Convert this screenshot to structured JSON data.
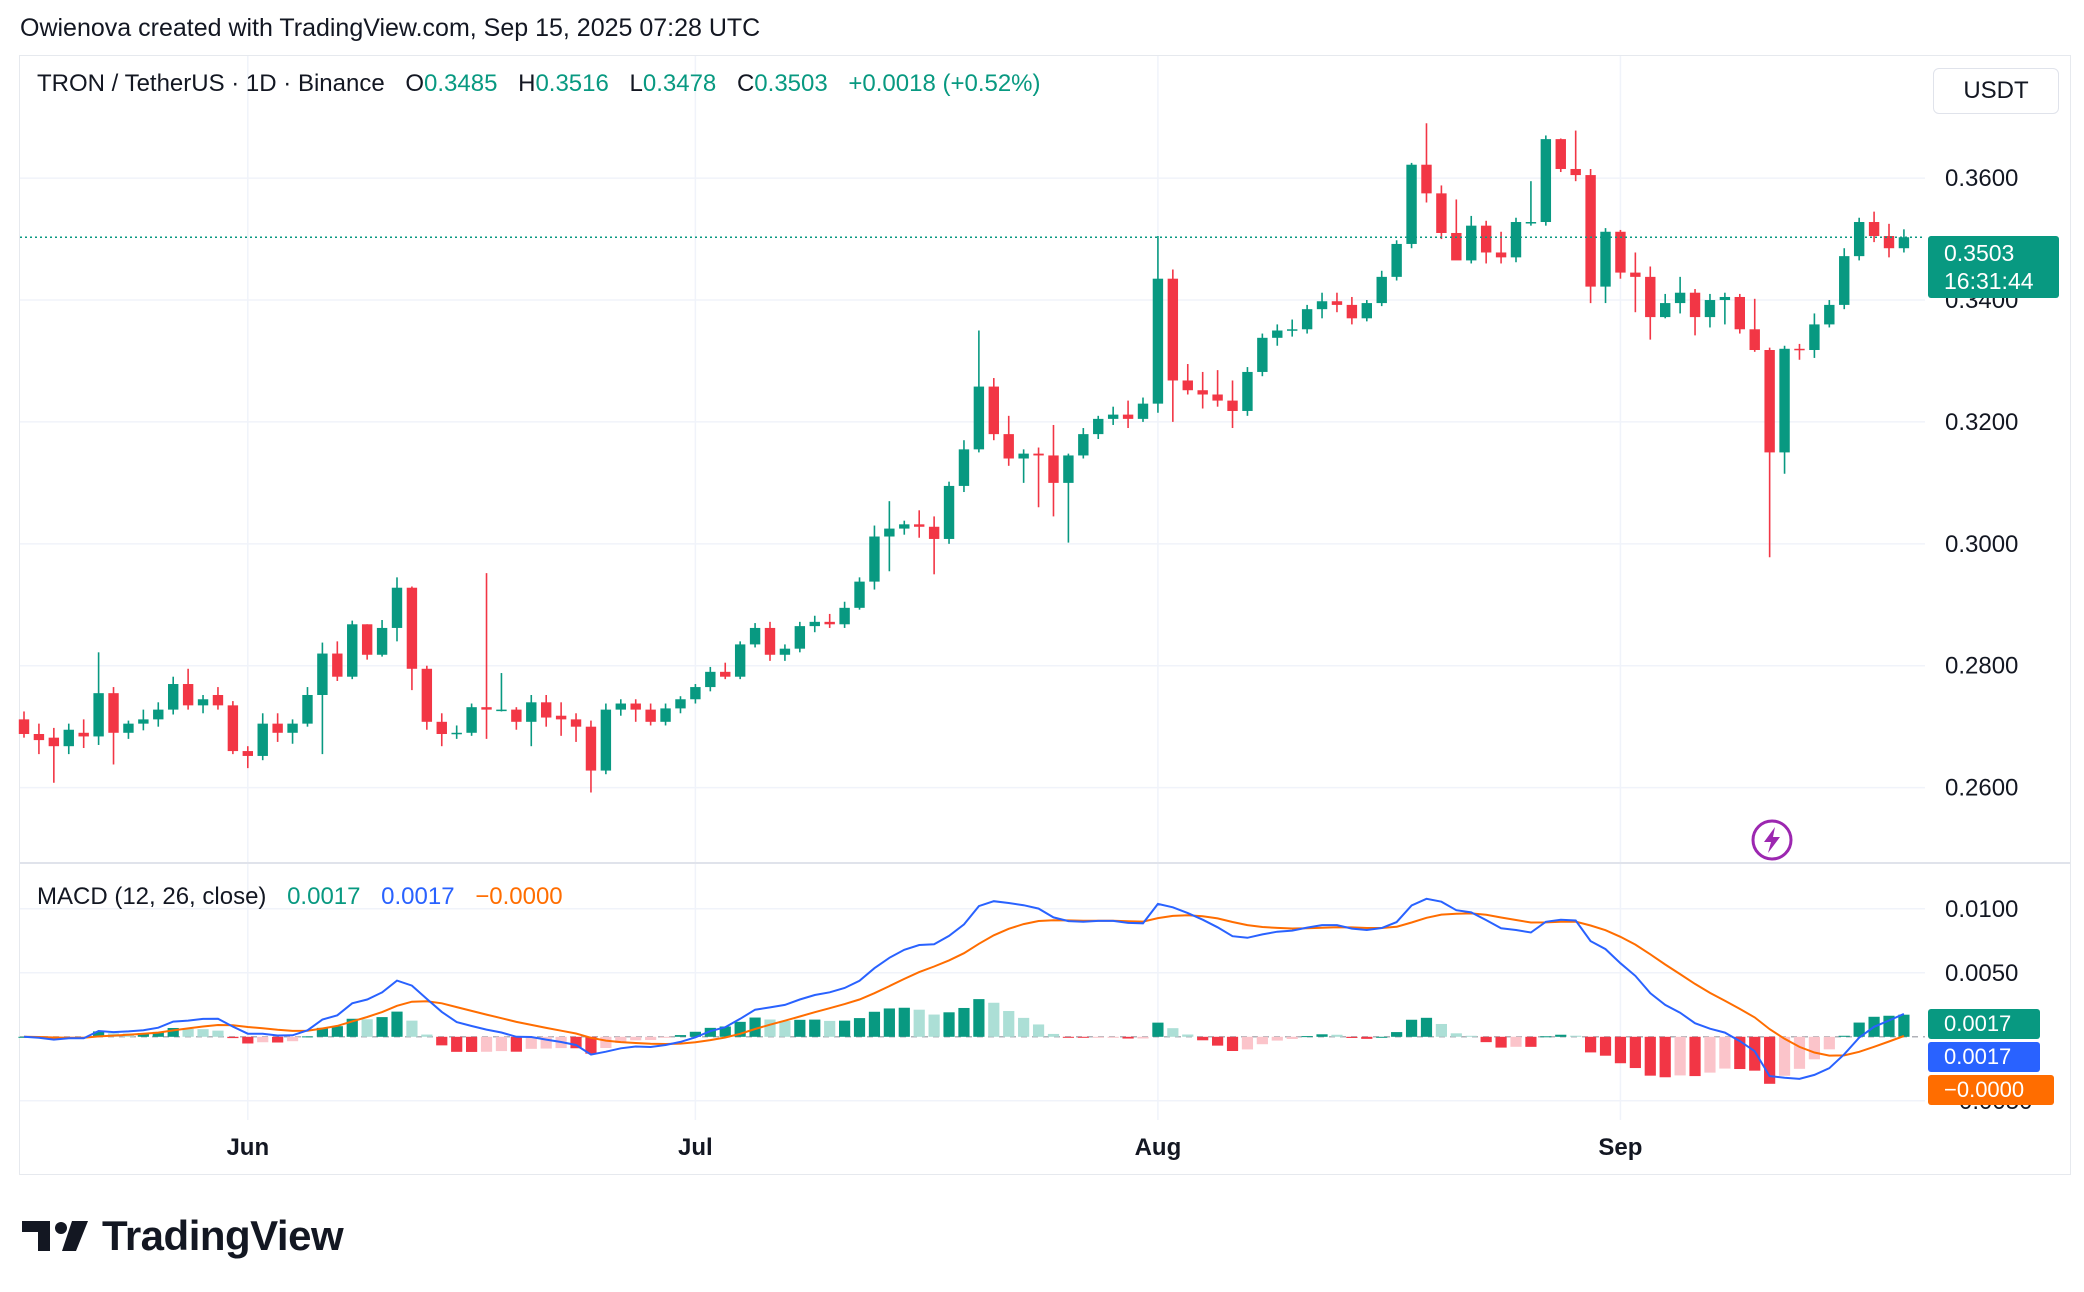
{
  "header": {
    "attribution": "Owienova created with TradingView.com, Sep 15, 2025 07:28 UTC"
  },
  "legend": {
    "symbol": "TRON / TetherUS · 1D · Binance",
    "open_label": "O",
    "open": "0.3485",
    "high_label": "H",
    "high": "0.3516",
    "low_label": "L",
    "low": "0.3478",
    "close_label": "C",
    "close": "0.3503",
    "change": "+0.0018 (+0.52%)"
  },
  "currency": "USDT",
  "price_tag": {
    "price": "0.3503",
    "countdown": "16:31:44"
  },
  "macd_legend": {
    "title": "MACD (12, 26, close)",
    "histogram": "0.0017",
    "macd": "0.0017",
    "signal": "−0.0000"
  },
  "macd_tags": {
    "histogram": "0.0017",
    "macd": "0.0017",
    "signal": "−0.0000"
  },
  "footer": {
    "brand": "TradingView"
  },
  "colors": {
    "up": "#089981",
    "down": "#f23645",
    "up_light": "#acdfd6",
    "down_light": "#fbc4ca",
    "macd": "#2962ff",
    "signal": "#ff6d00",
    "grid": "#f0f3fa"
  },
  "chart_data": [
    {
      "type": "candlestick",
      "title": "TRON / TetherUS · 1D · Binance",
      "ylabel": "USDT",
      "y_ticks": [
        0.26,
        0.28,
        0.3,
        0.32,
        0.34,
        0.36
      ],
      "y_tick_labels": [
        "0.2600",
        "0.2800",
        "0.3000",
        "0.3200",
        "0.3400",
        "0.3600"
      ],
      "ylim": [
        0.2478,
        0.3802
      ],
      "x_tick_labels": [
        {
          "label": "Jun",
          "date": "2025-06-01"
        },
        {
          "label": "Jul",
          "date": "2025-07-01"
        },
        {
          "label": "Aug",
          "date": "2025-08-01"
        },
        {
          "label": "Sep",
          "date": "2025-09-01"
        }
      ],
      "first_date": "2025-05-17",
      "last_close": 0.3503,
      "ohlc": [
        [
          0.2712,
          0.2725,
          0.2682,
          0.2688
        ],
        [
          0.2688,
          0.2705,
          0.2655,
          0.2678
        ],
        [
          0.2682,
          0.2698,
          0.2608,
          0.2668
        ],
        [
          0.2668,
          0.2705,
          0.2655,
          0.2695
        ],
        [
          0.269,
          0.2712,
          0.2665,
          0.2684
        ],
        [
          0.2684,
          0.2822,
          0.267,
          0.2755
        ],
        [
          0.2755,
          0.2765,
          0.2638,
          0.269
        ],
        [
          0.269,
          0.271,
          0.268,
          0.2705
        ],
        [
          0.2705,
          0.2728,
          0.2694,
          0.2712
        ],
        [
          0.2712,
          0.274,
          0.27,
          0.2728
        ],
        [
          0.2728,
          0.2782,
          0.272,
          0.277
        ],
        [
          0.277,
          0.2795,
          0.2728,
          0.2735
        ],
        [
          0.2735,
          0.2752,
          0.2722,
          0.2745
        ],
        [
          0.2752,
          0.2765,
          0.2728,
          0.2735
        ],
        [
          0.2735,
          0.2742,
          0.2655,
          0.266
        ],
        [
          0.266,
          0.2668,
          0.2632,
          0.2652
        ],
        [
          0.2652,
          0.2722,
          0.2645,
          0.2705
        ],
        [
          0.2705,
          0.2722,
          0.2675,
          0.269
        ],
        [
          0.269,
          0.2712,
          0.2672,
          0.2705
        ],
        [
          0.2705,
          0.2765,
          0.27,
          0.2752
        ],
        [
          0.2752,
          0.2838,
          0.2655,
          0.282
        ],
        [
          0.282,
          0.284,
          0.2775,
          0.2782
        ],
        [
          0.2782,
          0.2874,
          0.2778,
          0.2868
        ],
        [
          0.2868,
          0.2868,
          0.281,
          0.2818
        ],
        [
          0.2818,
          0.2875,
          0.2815,
          0.2862
        ],
        [
          0.2862,
          0.2945,
          0.284,
          0.2928
        ],
        [
          0.2928,
          0.293,
          0.276,
          0.2795
        ],
        [
          0.2795,
          0.28,
          0.2695,
          0.2708
        ],
        [
          0.2708,
          0.2722,
          0.2668,
          0.2688
        ],
        [
          0.2688,
          0.2702,
          0.268,
          0.269
        ],
        [
          0.269,
          0.2738,
          0.2685,
          0.2732
        ],
        [
          0.2732,
          0.2952,
          0.268,
          0.2728
        ],
        [
          0.2728,
          0.2788,
          0.2725,
          0.2728
        ],
        [
          0.2728,
          0.2732,
          0.2695,
          0.2708
        ],
        [
          0.2708,
          0.2752,
          0.2668,
          0.274
        ],
        [
          0.274,
          0.2752,
          0.27,
          0.2715
        ],
        [
          0.2718,
          0.274,
          0.2685,
          0.2712
        ],
        [
          0.2712,
          0.2722,
          0.2675,
          0.27
        ],
        [
          0.27,
          0.271,
          0.2592,
          0.2628
        ],
        [
          0.2628,
          0.2738,
          0.2622,
          0.2728
        ],
        [
          0.2728,
          0.2745,
          0.2718,
          0.2738
        ],
        [
          0.2738,
          0.2745,
          0.2708,
          0.2728
        ],
        [
          0.2728,
          0.2738,
          0.2702,
          0.2708
        ],
        [
          0.2708,
          0.2738,
          0.2702,
          0.273
        ],
        [
          0.273,
          0.275,
          0.2722,
          0.2745
        ],
        [
          0.2745,
          0.277,
          0.2738,
          0.2765
        ],
        [
          0.2765,
          0.2798,
          0.2758,
          0.279
        ],
        [
          0.279,
          0.2805,
          0.2778,
          0.2782
        ],
        [
          0.2782,
          0.284,
          0.2778,
          0.2835
        ],
        [
          0.2835,
          0.287,
          0.283,
          0.2862
        ],
        [
          0.2862,
          0.2872,
          0.2808,
          0.2818
        ],
        [
          0.2818,
          0.2835,
          0.2808,
          0.2828
        ],
        [
          0.2828,
          0.2872,
          0.2822,
          0.2865
        ],
        [
          0.2865,
          0.2882,
          0.2855,
          0.2872
        ],
        [
          0.2872,
          0.2885,
          0.2862,
          0.2868
        ],
        [
          0.2868,
          0.2905,
          0.2862,
          0.2895
        ],
        [
          0.2895,
          0.2945,
          0.2892,
          0.2938
        ],
        [
          0.2938,
          0.303,
          0.2925,
          0.3012
        ],
        [
          0.3012,
          0.307,
          0.2955,
          0.3025
        ],
        [
          0.3025,
          0.3038,
          0.3015,
          0.3032
        ],
        [
          0.3032,
          0.3055,
          0.301,
          0.3028
        ],
        [
          0.3028,
          0.3045,
          0.295,
          0.3008
        ],
        [
          0.3008,
          0.3102,
          0.3,
          0.3095
        ],
        [
          0.3095,
          0.317,
          0.3085,
          0.3155
        ],
        [
          0.3155,
          0.335,
          0.315,
          0.3258
        ],
        [
          0.3258,
          0.3272,
          0.317,
          0.318
        ],
        [
          0.318,
          0.321,
          0.3128,
          0.314
        ],
        [
          0.314,
          0.3155,
          0.31,
          0.3148
        ],
        [
          0.3148,
          0.3158,
          0.306,
          0.3145
        ],
        [
          0.3145,
          0.3195,
          0.3045,
          0.31
        ],
        [
          0.31,
          0.3148,
          0.3002,
          0.3145
        ],
        [
          0.3145,
          0.319,
          0.314,
          0.318
        ],
        [
          0.318,
          0.321,
          0.3172,
          0.3205
        ],
        [
          0.3205,
          0.3225,
          0.3195,
          0.3212
        ],
        [
          0.3212,
          0.3235,
          0.319,
          0.3205
        ],
        [
          0.3205,
          0.324,
          0.32,
          0.323
        ],
        [
          0.323,
          0.3505,
          0.3215,
          0.3435
        ],
        [
          0.3435,
          0.345,
          0.32,
          0.3268
        ],
        [
          0.3268,
          0.3295,
          0.3245,
          0.3252
        ],
        [
          0.3252,
          0.3282,
          0.3222,
          0.3245
        ],
        [
          0.3245,
          0.3285,
          0.3225,
          0.3235
        ],
        [
          0.3235,
          0.3268,
          0.319,
          0.3218
        ],
        [
          0.3218,
          0.329,
          0.321,
          0.3282
        ],
        [
          0.3282,
          0.3345,
          0.3275,
          0.3338
        ],
        [
          0.3338,
          0.336,
          0.3325,
          0.335
        ],
        [
          0.335,
          0.3368,
          0.334,
          0.3352
        ],
        [
          0.3352,
          0.3392,
          0.3345,
          0.3385
        ],
        [
          0.3385,
          0.3412,
          0.337,
          0.3398
        ],
        [
          0.3398,
          0.3412,
          0.338,
          0.3392
        ],
        [
          0.3392,
          0.3405,
          0.336,
          0.337
        ],
        [
          0.337,
          0.34,
          0.3365,
          0.3395
        ],
        [
          0.3395,
          0.3448,
          0.339,
          0.3438
        ],
        [
          0.3438,
          0.3498,
          0.3432,
          0.3492
        ],
        [
          0.3492,
          0.3625,
          0.3485,
          0.3622
        ],
        [
          0.3622,
          0.369,
          0.356,
          0.3575
        ],
        [
          0.3575,
          0.3588,
          0.35,
          0.351
        ],
        [
          0.351,
          0.3565,
          0.347,
          0.3465
        ],
        [
          0.3465,
          0.3538,
          0.346,
          0.3522
        ],
        [
          0.3522,
          0.353,
          0.346,
          0.3478
        ],
        [
          0.3478,
          0.3512,
          0.346,
          0.347
        ],
        [
          0.347,
          0.3535,
          0.3462,
          0.3528
        ],
        [
          0.3528,
          0.3595,
          0.3522,
          0.3528
        ],
        [
          0.3528,
          0.367,
          0.3522,
          0.3664
        ],
        [
          0.3664,
          0.3665,
          0.361,
          0.3615
        ],
        [
          0.3615,
          0.3678,
          0.3595,
          0.3605
        ],
        [
          0.3605,
          0.3615,
          0.3395,
          0.3422
        ],
        [
          0.3422,
          0.3518,
          0.3395,
          0.3512
        ],
        [
          0.3512,
          0.3515,
          0.3435,
          0.3445
        ],
        [
          0.3445,
          0.3478,
          0.338,
          0.3438
        ],
        [
          0.3438,
          0.3455,
          0.3335,
          0.3372
        ],
        [
          0.3372,
          0.341,
          0.337,
          0.3395
        ],
        [
          0.3395,
          0.3438,
          0.3378,
          0.3412
        ],
        [
          0.3412,
          0.3418,
          0.3342,
          0.3372
        ],
        [
          0.3372,
          0.341,
          0.3355,
          0.34
        ],
        [
          0.34,
          0.3412,
          0.336,
          0.3405
        ],
        [
          0.3405,
          0.341,
          0.3345,
          0.3352
        ],
        [
          0.3352,
          0.3402,
          0.3315,
          0.3318
        ],
        [
          0.3318,
          0.3322,
          0.2978,
          0.315
        ],
        [
          0.315,
          0.3325,
          0.3115,
          0.332
        ],
        [
          0.332,
          0.3328,
          0.3302,
          0.3318
        ],
        [
          0.3318,
          0.3378,
          0.3305,
          0.336
        ],
        [
          0.336,
          0.34,
          0.3355,
          0.3392
        ],
        [
          0.3392,
          0.3485,
          0.3385,
          0.3472
        ],
        [
          0.3472,
          0.3535,
          0.3465,
          0.3528
        ],
        [
          0.3528,
          0.3545,
          0.3495,
          0.3505
        ],
        [
          0.3505,
          0.3525,
          0.347,
          0.3485
        ],
        [
          0.3485,
          0.3516,
          0.3478,
          0.3503
        ]
      ]
    },
    {
      "type": "macd",
      "title": "MACD (12, 26, close)",
      "params": {
        "fast": 12,
        "slow": 26,
        "source": "close"
      },
      "y_ticks": [
        -0.005,
        0.005,
        0.01
      ],
      "y_tick_labels": [
        "−0.0050",
        "0.0050",
        "0.0100"
      ],
      "ylim": [
        -0.0065,
        0.0135
      ],
      "last": {
        "macd": 0.0017,
        "signal": -0.0,
        "histogram": 0.0017
      }
    }
  ]
}
